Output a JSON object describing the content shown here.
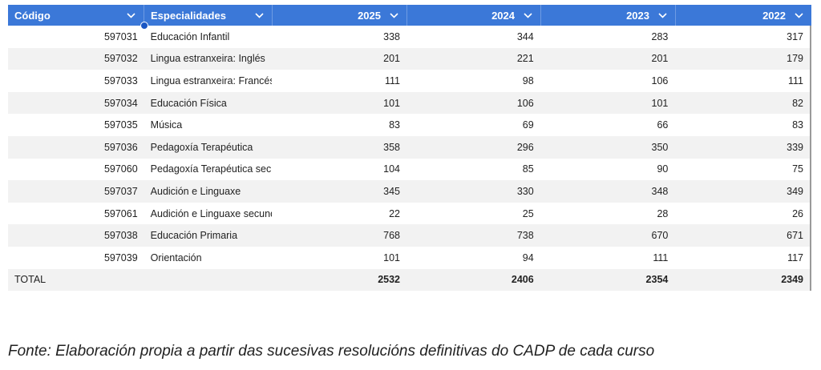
{
  "table": {
    "headers": [
      {
        "label": "Código",
        "align": "left"
      },
      {
        "label": "Especialidades",
        "align": "left"
      },
      {
        "label": "2025",
        "align": "right"
      },
      {
        "label": "2024",
        "align": "right"
      },
      {
        "label": "2023",
        "align": "right"
      },
      {
        "label": "2022",
        "align": "right"
      }
    ],
    "rows": [
      [
        "597031",
        "Educación Infantil",
        "338",
        "344",
        "283",
        "317"
      ],
      [
        "597032",
        "Lingua estranxeira: Inglés",
        "201",
        "221",
        "201",
        "179"
      ],
      [
        "597033",
        "Lingua estranxeira: Francés",
        "111",
        "98",
        "106",
        "111"
      ],
      [
        "597034",
        "Educación Física",
        "101",
        "106",
        "101",
        "82"
      ],
      [
        "597035",
        "Música",
        "83",
        "69",
        "66",
        "83"
      ],
      [
        "597036",
        "Pedagoxía Terapéutica",
        "358",
        "296",
        "350",
        "339"
      ],
      [
        "597060",
        "Pedagoxía Terapéutica secur",
        "104",
        "85",
        "90",
        "75"
      ],
      [
        "597037",
        "Audición e Linguaxe",
        "345",
        "330",
        "348",
        "349"
      ],
      [
        "597061",
        "Audición e Linguaxe secunda",
        "22",
        "25",
        "28",
        "26"
      ],
      [
        "597038",
        "Educación Primaria",
        "768",
        "738",
        "670",
        "671"
      ],
      [
        "597039",
        "Orientación",
        "101",
        "94",
        "111",
        "117"
      ]
    ],
    "total": {
      "label": "TOTAL",
      "values": [
        "2532",
        "2406",
        "2354",
        "2349"
      ]
    },
    "header_bg": "#3b78d8",
    "alt_row_bg": "#f2f2f2"
  },
  "caption": "Fonte: Elaboración propia a partir das sucesivas resolucións definitivas do CADP de cada curso"
}
